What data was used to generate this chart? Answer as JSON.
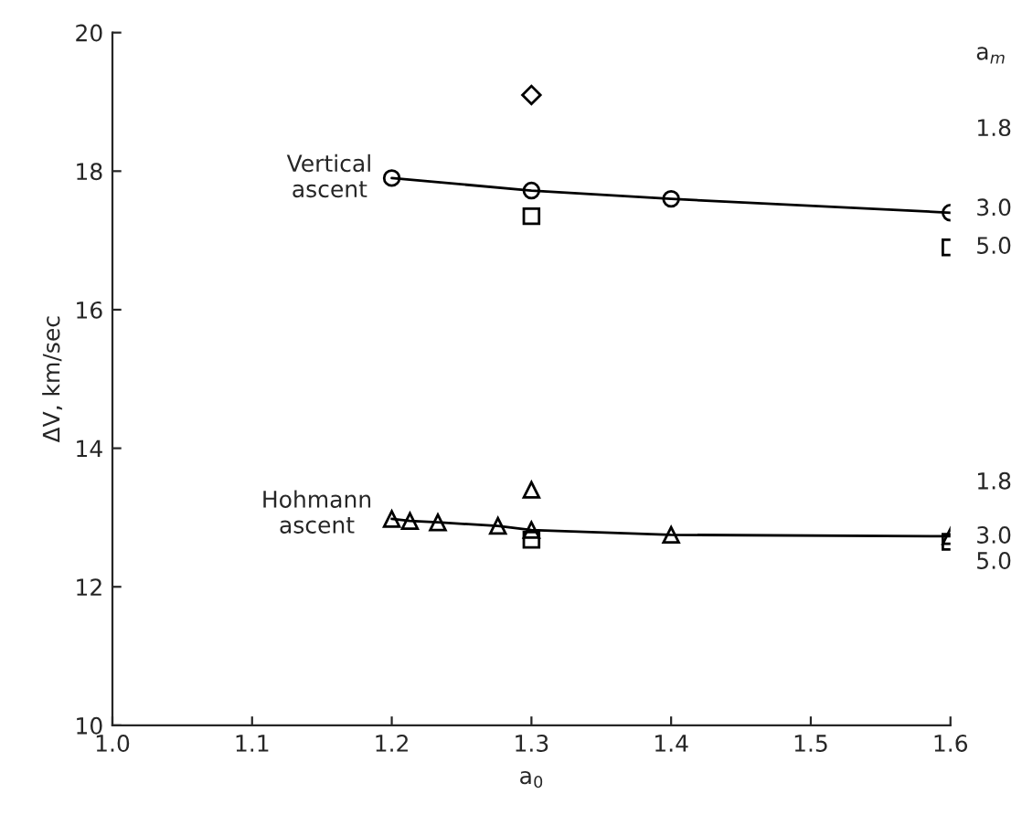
{
  "chart_data": {
    "type": "scatter",
    "xlabel": "a$_{0}$",
    "ylabel": "ΔV, km/sec",
    "xlim": [
      1.0,
      1.6
    ],
    "xticks": [
      {
        "value": 1.0,
        "label": "1.0"
      },
      1.1,
      1.2,
      1.3,
      1.4,
      1.5,
      {
        "value": 1.6,
        "label": "1.6"
      }
    ],
    "ylim": [
      10,
      20
    ],
    "yticks": [
      10,
      12,
      14,
      16,
      18,
      20
    ],
    "grid": false,
    "legend": false,
    "series": [
      {
        "type": "line",
        "marker": "circle",
        "color": "#000000",
        "x": [
          1.2,
          1.3,
          1.4,
          1.6
        ],
        "values": [
          17.9,
          17.72,
          17.6,
          17.4
        ]
      },
      {
        "marker": "diamond",
        "color": "#000000",
        "x": [
          1.3
        ],
        "values": [
          19.1
        ]
      },
      {
        "marker": "square",
        "color": "#000000",
        "x": [
          1.3,
          1.6
        ],
        "values": [
          17.35,
          16.9
        ]
      },
      {
        "type": "line",
        "marker": "triangle",
        "color": "#000000",
        "x": [
          1.2,
          1.213,
          1.233,
          1.276,
          1.3,
          1.4,
          1.6
        ],
        "values": [
          12.98,
          12.95,
          12.93,
          12.88,
          12.82,
          12.75,
          12.73
        ]
      },
      {
        "marker": "triangle",
        "color": "#000000",
        "x": [
          1.3
        ],
        "values": [
          13.4
        ]
      },
      {
        "marker": "square",
        "color": "#000000",
        "x": [
          1.3,
          1.6
        ],
        "values": [
          12.68,
          12.65
        ]
      }
    ],
    "annotations": [
      "a$_{m}$",
      "1.8",
      "3.0",
      "5.0",
      "1.8",
      "3.0",
      "5.0",
      "Vertical\nascent",
      "Hohmann\nascent"
    ]
  }
}
